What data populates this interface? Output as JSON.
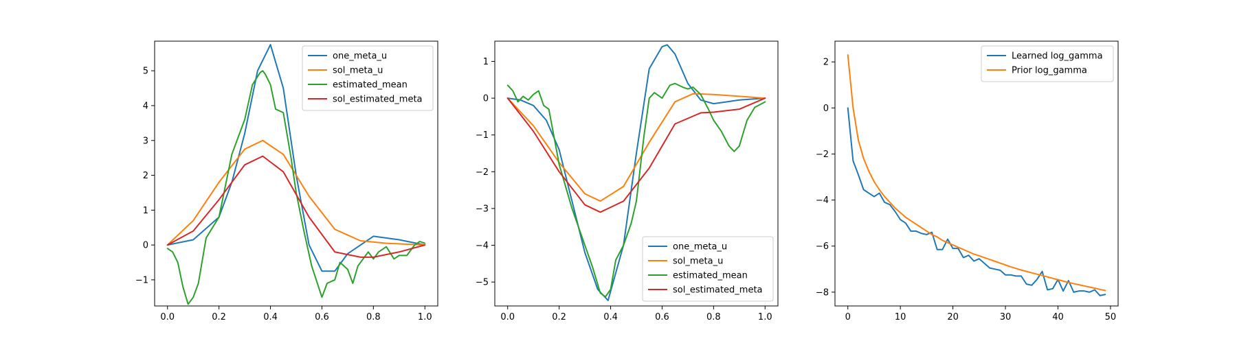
{
  "colors": {
    "blue": "#1f77b4",
    "orange": "#ff7f0e",
    "green": "#2ca02c",
    "red": "#d62728"
  },
  "chart_data": [
    {
      "type": "line",
      "xlim": [
        -0.05,
        1.05
      ],
      "ylim": [
        -1.75,
        5.85
      ],
      "xticks": [
        0.0,
        0.2,
        0.4,
        0.6,
        0.8,
        1.0
      ],
      "xtick_labels": [
        "0.0",
        "0.2",
        "0.4",
        "0.6",
        "0.8",
        "1.0"
      ],
      "yticks": [
        -1,
        0,
        1,
        2,
        3,
        4,
        5
      ],
      "ytick_labels": [
        "−1",
        "0",
        "1",
        "2",
        "3",
        "4",
        "5"
      ],
      "legend_position": "top-right",
      "series": [
        {
          "name": "one_meta_u",
          "color": "#1f77b4",
          "x": [
            0.0,
            0.1,
            0.2,
            0.25,
            0.3,
            0.35,
            0.4,
            0.45,
            0.5,
            0.55,
            0.6,
            0.65,
            0.7,
            0.8,
            0.9,
            1.0
          ],
          "y": [
            0.0,
            0.15,
            0.8,
            1.8,
            3.2,
            5.0,
            5.75,
            4.5,
            2.0,
            0.0,
            -0.75,
            -0.75,
            -0.25,
            0.25,
            0.15,
            0.0
          ]
        },
        {
          "name": "sol_meta_u",
          "color": "#ff7f0e",
          "x": [
            0.0,
            0.1,
            0.2,
            0.3,
            0.37,
            0.45,
            0.55,
            0.65,
            0.75,
            0.85,
            1.0
          ],
          "y": [
            0.0,
            0.7,
            1.8,
            2.75,
            3.0,
            2.6,
            1.4,
            0.45,
            0.12,
            0.05,
            0.0
          ]
        },
        {
          "name": "estimated_mean",
          "color": "#2ca02c",
          "x": [
            0.0,
            0.02,
            0.04,
            0.06,
            0.08,
            0.1,
            0.12,
            0.15,
            0.2,
            0.25,
            0.3,
            0.33,
            0.36,
            0.37,
            0.38,
            0.4,
            0.42,
            0.45,
            0.48,
            0.5,
            0.53,
            0.56,
            0.6,
            0.62,
            0.65,
            0.67,
            0.7,
            0.72,
            0.74,
            0.76,
            0.78,
            0.8,
            0.82,
            0.85,
            0.88,
            0.9,
            0.93,
            0.96,
            0.98,
            1.0
          ],
          "y": [
            -0.1,
            -0.2,
            -0.5,
            -1.2,
            -1.7,
            -1.5,
            -1.1,
            0.2,
            0.8,
            2.6,
            3.6,
            4.6,
            4.95,
            5.0,
            4.9,
            4.6,
            3.9,
            3.8,
            2.5,
            1.5,
            0.4,
            -0.6,
            -1.5,
            -1.1,
            -1.0,
            -0.5,
            -0.7,
            -1.1,
            -0.6,
            -0.4,
            -0.2,
            -0.4,
            -0.2,
            -0.05,
            -0.4,
            -0.3,
            -0.3,
            0.0,
            0.1,
            0.05
          ]
        },
        {
          "name": "sol_estimated_meta",
          "color": "#d62728",
          "x": [
            0.0,
            0.1,
            0.2,
            0.3,
            0.37,
            0.45,
            0.55,
            0.65,
            0.75,
            0.8,
            0.9,
            1.0
          ],
          "y": [
            0.0,
            0.4,
            1.3,
            2.3,
            2.55,
            2.1,
            0.8,
            -0.2,
            -0.35,
            -0.35,
            -0.2,
            0.0
          ]
        }
      ]
    },
    {
      "type": "line",
      "xlim": [
        -0.05,
        1.05
      ],
      "ylim": [
        -5.65,
        1.55
      ],
      "xticks": [
        0.0,
        0.2,
        0.4,
        0.6,
        0.8,
        1.0
      ],
      "xtick_labels": [
        "0.0",
        "0.2",
        "0.4",
        "0.6",
        "0.8",
        "1.0"
      ],
      "yticks": [
        -5,
        -4,
        -3,
        -2,
        -1,
        0,
        1
      ],
      "ytick_labels": [
        "−5",
        "−4",
        "−3",
        "−2",
        "−1",
        "0",
        "1"
      ],
      "legend_position": "lower-right",
      "series": [
        {
          "name": "one_meta_u",
          "color": "#1f77b4",
          "x": [
            0.0,
            0.05,
            0.1,
            0.15,
            0.2,
            0.25,
            0.3,
            0.35,
            0.39,
            0.45,
            0.5,
            0.55,
            0.6,
            0.62,
            0.65,
            0.7,
            0.75,
            0.8,
            0.85,
            0.9,
            1.0
          ],
          "y": [
            0.0,
            -0.05,
            -0.2,
            -0.6,
            -1.4,
            -2.8,
            -4.2,
            -5.2,
            -5.5,
            -4.0,
            -1.5,
            0.8,
            1.4,
            1.45,
            1.2,
            0.4,
            -0.05,
            -0.15,
            -0.1,
            -0.05,
            0.0
          ]
        },
        {
          "name": "sol_meta_u",
          "color": "#ff7f0e",
          "x": [
            0.0,
            0.1,
            0.2,
            0.3,
            0.36,
            0.45,
            0.55,
            0.65,
            0.72,
            0.8,
            0.9,
            1.0
          ],
          "y": [
            0.0,
            -0.75,
            -1.75,
            -2.6,
            -2.8,
            -2.4,
            -1.2,
            -0.1,
            0.12,
            0.1,
            0.05,
            0.0
          ]
        },
        {
          "name": "estimated_mean",
          "color": "#2ca02c",
          "x": [
            0.0,
            0.02,
            0.04,
            0.06,
            0.08,
            0.1,
            0.12,
            0.14,
            0.16,
            0.2,
            0.25,
            0.3,
            0.33,
            0.36,
            0.38,
            0.4,
            0.42,
            0.45,
            0.48,
            0.5,
            0.53,
            0.55,
            0.57,
            0.6,
            0.63,
            0.65,
            0.68,
            0.7,
            0.72,
            0.75,
            0.78,
            0.8,
            0.83,
            0.86,
            0.88,
            0.9,
            0.93,
            0.96,
            1.0
          ],
          "y": [
            0.35,
            0.2,
            -0.1,
            0.05,
            -0.05,
            0.1,
            0.2,
            -0.2,
            -0.3,
            -1.8,
            -3.0,
            -4.0,
            -4.6,
            -5.3,
            -5.4,
            -5.2,
            -4.4,
            -4.0,
            -3.4,
            -2.8,
            -1.0,
            0.0,
            0.15,
            0.0,
            0.35,
            0.4,
            0.3,
            0.25,
            0.3,
            0.1,
            -0.3,
            -0.6,
            -0.9,
            -1.3,
            -1.45,
            -1.3,
            -0.6,
            -0.25,
            -0.1
          ]
        },
        {
          "name": "sol_estimated_meta",
          "color": "#d62728",
          "x": [
            0.0,
            0.1,
            0.2,
            0.3,
            0.36,
            0.45,
            0.55,
            0.65,
            0.75,
            0.8,
            0.9,
            1.0
          ],
          "y": [
            0.0,
            -0.9,
            -2.0,
            -2.9,
            -3.1,
            -2.8,
            -1.9,
            -0.7,
            -0.4,
            -0.38,
            -0.3,
            0.0
          ]
        }
      ]
    },
    {
      "type": "line",
      "xlim": [
        -2.45,
        51.45
      ],
      "ylim": [
        -8.6,
        2.9
      ],
      "xticks": [
        0,
        10,
        20,
        30,
        40,
        50
      ],
      "xtick_labels": [
        "0",
        "10",
        "20",
        "30",
        "40",
        "50"
      ],
      "yticks": [
        -8,
        -6,
        -4,
        -2,
        0,
        2
      ],
      "ytick_labels": [
        "−8",
        "−6",
        "−4",
        "−2",
        "0",
        "2"
      ],
      "legend_position": "top-right",
      "series": [
        {
          "name": "Learned log_gamma",
          "color": "#1f77b4",
          "x": [
            0,
            1,
            2,
            3,
            4,
            5,
            6,
            7,
            8,
            9,
            10,
            11,
            12,
            13,
            14,
            15,
            16,
            17,
            18,
            19,
            20,
            21,
            22,
            23,
            24,
            25,
            26,
            27,
            28,
            29,
            30,
            31,
            32,
            33,
            34,
            35,
            36,
            37,
            38,
            39,
            40,
            41,
            42,
            43,
            44,
            45,
            46,
            47,
            48,
            49
          ],
          "y": [
            0.0,
            -2.3,
            -2.9,
            -3.55,
            -3.7,
            -3.85,
            -3.7,
            -4.1,
            -4.2,
            -4.5,
            -4.85,
            -5.0,
            -5.35,
            -5.35,
            -5.45,
            -5.5,
            -5.4,
            -6.15,
            -6.15,
            -5.7,
            -6.1,
            -6.1,
            -6.5,
            -6.4,
            -6.65,
            -6.55,
            -6.75,
            -6.95,
            -7.0,
            -7.05,
            -7.25,
            -7.25,
            -7.3,
            -7.3,
            -7.65,
            -7.7,
            -7.45,
            -7.1,
            -7.9,
            -7.85,
            -7.45,
            -7.95,
            -7.5,
            -8.0,
            -7.95,
            -7.95,
            -8.0,
            -7.9,
            -8.15,
            -8.1
          ]
        },
        {
          "name": "Prior log_gamma",
          "color": "#ff7f0e",
          "x": [
            0,
            1,
            2,
            3,
            4,
            5,
            6,
            7,
            8,
            9,
            10,
            11,
            12,
            13,
            14,
            15,
            16,
            17,
            18,
            19,
            20,
            21,
            22,
            23,
            24,
            25,
            26,
            27,
            28,
            29,
            30,
            31,
            32,
            33,
            34,
            35,
            36,
            37,
            38,
            39,
            40,
            41,
            42,
            43,
            44,
            45,
            46,
            47,
            48,
            49
          ],
          "y": [
            2.3,
            0.0,
            -1.4,
            -2.2,
            -2.75,
            -3.2,
            -3.55,
            -3.85,
            -4.1,
            -4.35,
            -4.55,
            -4.75,
            -4.9,
            -5.05,
            -5.2,
            -5.35,
            -5.5,
            -5.6,
            -5.75,
            -5.85,
            -5.95,
            -6.05,
            -6.15,
            -6.25,
            -6.35,
            -6.42,
            -6.5,
            -6.58,
            -6.66,
            -6.74,
            -6.82,
            -6.9,
            -6.97,
            -7.04,
            -7.1,
            -7.16,
            -7.22,
            -7.28,
            -7.34,
            -7.4,
            -7.46,
            -7.52,
            -7.58,
            -7.63,
            -7.68,
            -7.73,
            -7.78,
            -7.83,
            -7.88,
            -7.93
          ]
        }
      ]
    }
  ]
}
